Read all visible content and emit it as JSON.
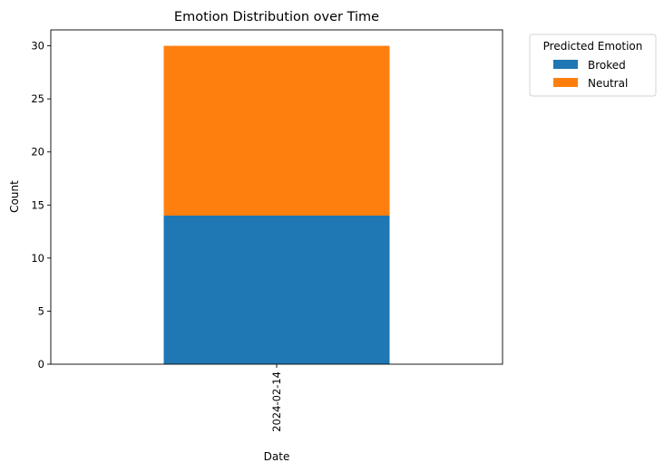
{
  "chart_data": {
    "type": "bar",
    "stacked": true,
    "title": "Emotion Distribution over Time",
    "xlabel": "Date",
    "ylabel": "Count",
    "categories": [
      "2024-02-14"
    ],
    "series": [
      {
        "name": "Broked",
        "values": [
          14
        ],
        "color": "#1f77b4"
      },
      {
        "name": "Neutral",
        "values": [
          16
        ],
        "color": "#ff7f0e"
      }
    ],
    "ylim": [
      0,
      31.5
    ],
    "yticks": [
      0,
      5,
      10,
      15,
      20,
      25,
      30
    ],
    "grid": false,
    "legend": {
      "title": "Predicted Emotion",
      "placement": "outside-upper-right"
    }
  }
}
